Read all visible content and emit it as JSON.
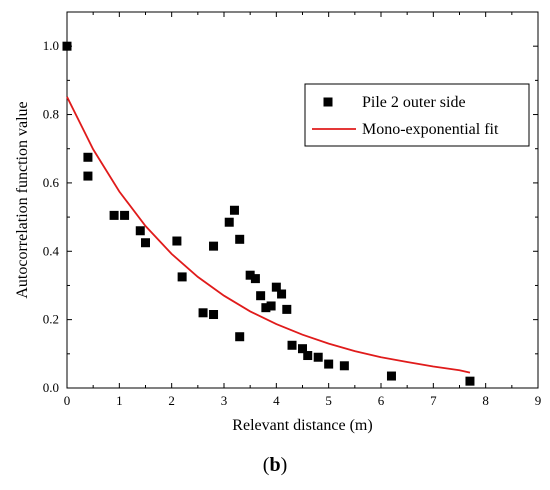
{
  "panel_label": {
    "open": "(",
    "letter": "b",
    "close": ")"
  },
  "chart_data": {
    "type": "scatter",
    "xlabel": "Relevant distance (m)",
    "ylabel": "Autocorrelation function value",
    "xlim": [
      0,
      9
    ],
    "ylim": [
      0,
      1.1
    ],
    "xticks": [
      0,
      1,
      2,
      3,
      4,
      5,
      6,
      7,
      8,
      9
    ],
    "yticks": [
      0.0,
      0.2,
      0.4,
      0.6,
      0.8,
      1.0
    ],
    "grid": false,
    "legend_position": "top-right",
    "series": [
      {
        "name": "Pile 2 outer side",
        "kind": "scatter",
        "marker": "square",
        "color": "#000000",
        "x": [
          0.0,
          0.4,
          0.4,
          0.9,
          1.1,
          1.4,
          1.5,
          2.1,
          2.2,
          2.6,
          2.8,
          2.8,
          3.1,
          3.2,
          3.3,
          3.3,
          3.5,
          3.6,
          3.7,
          3.8,
          3.9,
          4.0,
          4.1,
          4.2,
          4.3,
          4.5,
          4.6,
          4.8,
          5.0,
          5.3,
          6.2,
          7.7
        ],
        "y": [
          1.0,
          0.675,
          0.62,
          0.505,
          0.505,
          0.46,
          0.425,
          0.43,
          0.325,
          0.22,
          0.215,
          0.415,
          0.485,
          0.52,
          0.435,
          0.15,
          0.33,
          0.32,
          0.27,
          0.235,
          0.24,
          0.295,
          0.275,
          0.23,
          0.125,
          0.115,
          0.095,
          0.09,
          0.07,
          0.065,
          0.035,
          0.02
        ]
      },
      {
        "name": "Mono-exponential fit",
        "kind": "line",
        "color": "#e01b1b",
        "x": [
          0.0,
          0.5,
          1.0,
          1.5,
          2.0,
          2.5,
          3.0,
          3.5,
          4.0,
          4.5,
          5.0,
          5.5,
          6.0,
          6.5,
          7.0,
          7.5,
          7.7
        ],
        "y": [
          0.852,
          0.698,
          0.575,
          0.474,
          0.392,
          0.325,
          0.27,
          0.224,
          0.187,
          0.156,
          0.13,
          0.108,
          0.09,
          0.076,
          0.063,
          0.052,
          0.045
        ]
      }
    ]
  }
}
